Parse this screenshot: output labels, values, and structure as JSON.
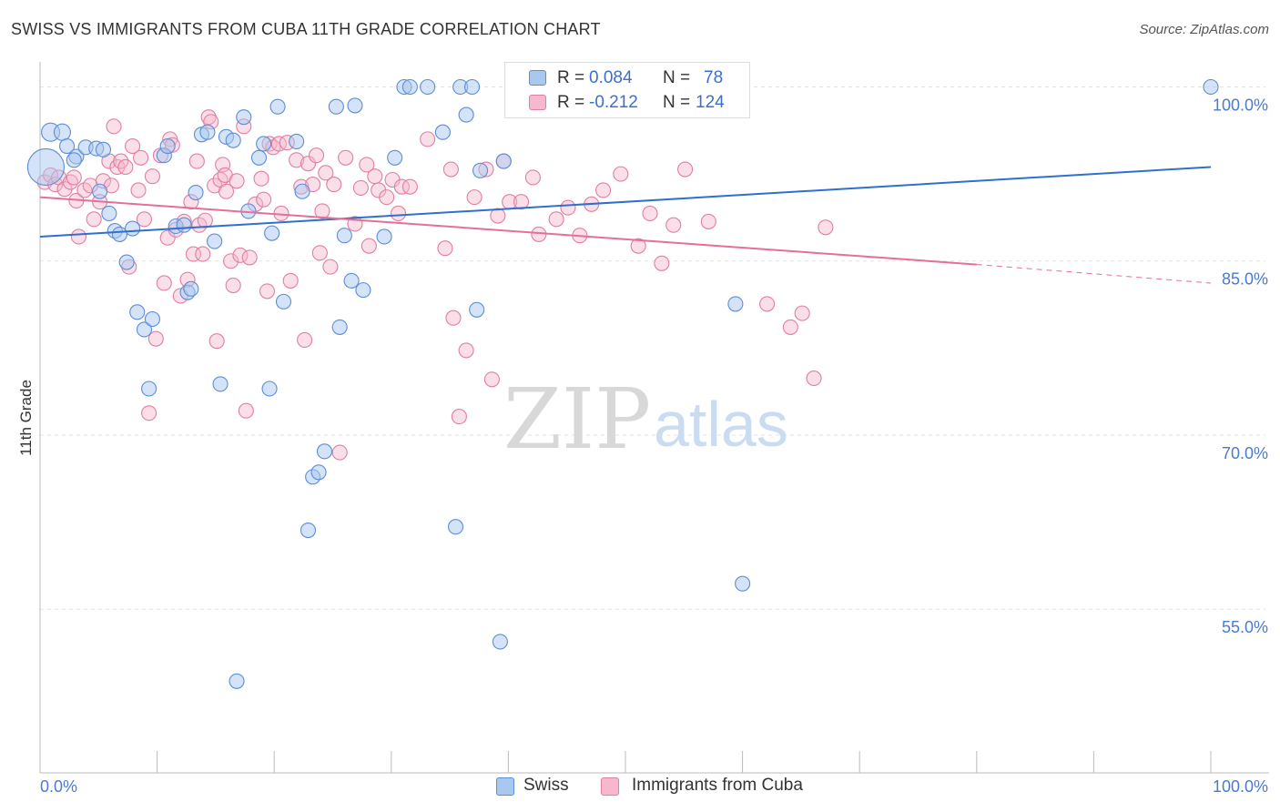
{
  "title": "SWISS VS IMMIGRANTS FROM CUBA 11TH GRADE CORRELATION CHART",
  "source": "Source: ZipAtlas.com",
  "watermark": "ZIPatlas",
  "colors": {
    "swiss_fill": "#a9c8f0",
    "swiss_stroke": "#5b8dd9",
    "swiss_line": "#2f6fcf",
    "cuba_fill": "#f7b8cc",
    "cuba_stroke": "#e07fa0",
    "cuba_line": "#e46f98",
    "axis_text": "#4a7bd1",
    "grid": "#e3e3e3"
  },
  "legend": {
    "rows": [
      {
        "r_label": "R =",
        "r_value": "0.084",
        "n_label": "N =",
        "n_value": "78"
      },
      {
        "r_label": "R =",
        "r_value": "-0.212",
        "n_label": "N =",
        "n_value": "124"
      }
    ]
  },
  "bottom_legend": [
    {
      "label": "Swiss"
    },
    {
      "label": "Immigrants from Cuba"
    }
  ],
  "chart_data": {
    "type": "scatter",
    "title": "SWISS VS IMMIGRANTS FROM CUBA 11TH GRADE CORRELATION CHART",
    "xlabel": "",
    "ylabel": "11th Grade",
    "x_tick_labels": [
      "0.0%",
      "100.0%"
    ],
    "y_tick_labels": [
      "100.0%",
      "85.0%",
      "70.0%",
      "55.0%"
    ],
    "y_ticks": [
      100,
      85,
      70,
      55
    ],
    "xlim": [
      0,
      100
    ],
    "ylim": [
      40.9,
      102.0
    ],
    "grid": true,
    "legend_position": "top-center",
    "series": [
      {
        "name": "Swiss",
        "r": 0.084,
        "n": 78,
        "trend": {
          "x": [
            0,
            100
          ],
          "y": [
            87.1,
            93.1
          ]
        },
        "points": [
          [
            0.5,
            93.1,
            20
          ],
          [
            0.9,
            96.1,
            10
          ],
          [
            1.9,
            96.1,
            9
          ],
          [
            2.3,
            94.9,
            8
          ],
          [
            3.1,
            94.0,
            8
          ],
          [
            3.9,
            94.8,
            8
          ],
          [
            4.8,
            94.7,
            8
          ],
          [
            5.4,
            94.6,
            8
          ],
          [
            2.9,
            93.7,
            8
          ],
          [
            5.1,
            91.0,
            8
          ],
          [
            5.9,
            89.1,
            8
          ],
          [
            6.4,
            87.6,
            8
          ],
          [
            6.8,
            87.3,
            8
          ],
          [
            7.9,
            87.8,
            8
          ],
          [
            7.4,
            84.9,
            8
          ],
          [
            8.3,
            80.6,
            8
          ],
          [
            8.9,
            79.1,
            8
          ],
          [
            9.6,
            80.0,
            8
          ],
          [
            9.3,
            74.0,
            8
          ],
          [
            10.6,
            94.1,
            8
          ],
          [
            10.9,
            94.9,
            8
          ],
          [
            11.6,
            88.0,
            8
          ],
          [
            12.3,
            88.1,
            8
          ],
          [
            12.6,
            82.3,
            8
          ],
          [
            12.9,
            82.6,
            8
          ],
          [
            13.3,
            90.9,
            8
          ],
          [
            13.8,
            95.9,
            8
          ],
          [
            14.3,
            96.1,
            8
          ],
          [
            14.9,
            86.7,
            8
          ],
          [
            15.4,
            74.4,
            8
          ],
          [
            15.9,
            95.7,
            8
          ],
          [
            16.5,
            95.4,
            8
          ],
          [
            16.8,
            48.8,
            8
          ],
          [
            17.4,
            97.4,
            8
          ],
          [
            17.8,
            89.3,
            8
          ],
          [
            18.7,
            93.9,
            8
          ],
          [
            19.1,
            95.1,
            8
          ],
          [
            19.6,
            74.0,
            8
          ],
          [
            19.8,
            87.4,
            8
          ],
          [
            20.3,
            98.3,
            8
          ],
          [
            20.8,
            81.5,
            8
          ],
          [
            21.9,
            95.3,
            8
          ],
          [
            22.4,
            91.0,
            8
          ],
          [
            22.9,
            61.8,
            8
          ],
          [
            23.3,
            66.4,
            8
          ],
          [
            23.8,
            66.8,
            8
          ],
          [
            24.3,
            68.6,
            8
          ],
          [
            25.3,
            98.3,
            8
          ],
          [
            25.6,
            79.3,
            8
          ],
          [
            26.0,
            87.2,
            8
          ],
          [
            26.6,
            83.3,
            8
          ],
          [
            26.9,
            98.4,
            8
          ],
          [
            27.6,
            82.5,
            8
          ],
          [
            29.4,
            87.1,
            8
          ],
          [
            30.3,
            93.9,
            8
          ],
          [
            31.1,
            100.0,
            8
          ],
          [
            31.6,
            100.0,
            8
          ],
          [
            33.1,
            100.0,
            8
          ],
          [
            34.4,
            96.1,
            8
          ],
          [
            35.5,
            62.1,
            8
          ],
          [
            35.9,
            100.0,
            8
          ],
          [
            36.4,
            97.6,
            8
          ],
          [
            36.9,
            100.0,
            8
          ],
          [
            37.3,
            80.8,
            8
          ],
          [
            37.6,
            92.8,
            8
          ],
          [
            39.3,
            52.2,
            8
          ],
          [
            39.6,
            93.6,
            8
          ],
          [
            45.2,
            100.0,
            8
          ],
          [
            46.5,
            100.0,
            8
          ],
          [
            47.6,
            100.0,
            8
          ],
          [
            51.9,
            100.0,
            8
          ],
          [
            53.1,
            100.0,
            8
          ],
          [
            55.3,
            100.0,
            8
          ],
          [
            57.7,
            100.0,
            8
          ],
          [
            59.0,
            100.0,
            8
          ],
          [
            60.0,
            57.2,
            8
          ],
          [
            59.4,
            81.3,
            8
          ],
          [
            100.0,
            100.0,
            8
          ]
        ]
      },
      {
        "name": "Immigrants from Cuba",
        "r": -0.212,
        "n": 124,
        "trend": {
          "x": [
            0,
            80
          ],
          "y": [
            90.5,
            84.7
          ]
        },
        "trend_dashed": {
          "x": [
            80,
            100
          ],
          "y": [
            84.7,
            83.1
          ]
        },
        "points": [
          [
            0.4,
            91.8,
            8
          ],
          [
            0.9,
            92.4,
            8
          ],
          [
            1.3,
            91.6,
            8
          ],
          [
            1.6,
            92.2,
            8
          ],
          [
            2.1,
            91.2,
            8
          ],
          [
            2.6,
            91.8,
            8
          ],
          [
            2.9,
            92.2,
            8
          ],
          [
            3.3,
            87.1,
            8
          ],
          [
            3.1,
            90.2,
            8
          ],
          [
            3.8,
            91.1,
            8
          ],
          [
            4.3,
            91.5,
            8
          ],
          [
            4.6,
            88.6,
            8
          ],
          [
            5.1,
            90.1,
            8
          ],
          [
            5.4,
            91.9,
            8
          ],
          [
            5.9,
            93.6,
            8
          ],
          [
            6.1,
            91.5,
            8
          ],
          [
            6.3,
            96.6,
            8
          ],
          [
            6.6,
            93.1,
            8
          ],
          [
            6.9,
            93.6,
            8
          ],
          [
            7.3,
            93.1,
            8
          ],
          [
            7.6,
            84.5,
            8
          ],
          [
            7.9,
            94.9,
            8
          ],
          [
            8.4,
            91.1,
            8
          ],
          [
            8.6,
            93.9,
            8
          ],
          [
            8.9,
            88.6,
            8
          ],
          [
            9.3,
            71.9,
            8
          ],
          [
            9.6,
            92.3,
            8
          ],
          [
            9.9,
            78.3,
            8
          ],
          [
            10.3,
            94.1,
            8
          ],
          [
            10.6,
            83.1,
            8
          ],
          [
            10.9,
            87.0,
            8
          ],
          [
            11.1,
            95.5,
            8
          ],
          [
            11.3,
            95.0,
            8
          ],
          [
            11.6,
            87.7,
            8
          ],
          [
            12.0,
            82.0,
            8
          ],
          [
            12.3,
            88.4,
            8
          ],
          [
            12.6,
            83.4,
            8
          ],
          [
            12.9,
            90.1,
            8
          ],
          [
            13.1,
            85.6,
            8
          ],
          [
            13.4,
            93.6,
            8
          ],
          [
            13.6,
            88.1,
            8
          ],
          [
            13.9,
            85.6,
            8
          ],
          [
            14.1,
            88.5,
            8
          ],
          [
            14.4,
            97.4,
            8
          ],
          [
            14.6,
            97.0,
            8
          ],
          [
            14.9,
            91.5,
            8
          ],
          [
            15.1,
            78.1,
            8
          ],
          [
            15.4,
            92.0,
            8
          ],
          [
            15.6,
            93.3,
            8
          ],
          [
            15.8,
            92.4,
            8
          ],
          [
            15.9,
            91.0,
            8
          ],
          [
            16.3,
            85.0,
            8
          ],
          [
            16.5,
            82.9,
            8
          ],
          [
            16.8,
            91.9,
            8
          ],
          [
            17.1,
            85.5,
            8
          ],
          [
            17.4,
            96.6,
            8
          ],
          [
            17.6,
            72.1,
            8
          ],
          [
            17.9,
            85.3,
            8
          ],
          [
            18.4,
            89.9,
            8
          ],
          [
            18.9,
            92.1,
            8
          ],
          [
            19.1,
            90.3,
            8
          ],
          [
            19.4,
            82.4,
            8
          ],
          [
            19.6,
            95.1,
            8
          ],
          [
            19.9,
            94.8,
            8
          ],
          [
            20.4,
            95.1,
            8
          ],
          [
            20.6,
            89.1,
            8
          ],
          [
            21.1,
            95.2,
            8
          ],
          [
            21.4,
            83.3,
            8
          ],
          [
            21.9,
            93.7,
            8
          ],
          [
            22.3,
            91.4,
            8
          ],
          [
            22.6,
            78.2,
            8
          ],
          [
            22.9,
            93.4,
            8
          ],
          [
            23.3,
            91.6,
            8
          ],
          [
            23.6,
            94.1,
            8
          ],
          [
            23.9,
            85.7,
            8
          ],
          [
            24.1,
            89.3,
            8
          ],
          [
            24.4,
            92.6,
            8
          ],
          [
            24.8,
            84.5,
            8
          ],
          [
            25.1,
            91.6,
            8
          ],
          [
            25.6,
            68.5,
            8
          ],
          [
            26.1,
            93.9,
            8
          ],
          [
            26.9,
            88.2,
            8
          ],
          [
            27.4,
            91.3,
            8
          ],
          [
            27.9,
            93.3,
            8
          ],
          [
            28.1,
            86.3,
            8
          ],
          [
            28.6,
            92.3,
            8
          ],
          [
            28.9,
            91.1,
            8
          ],
          [
            29.6,
            90.5,
            8
          ],
          [
            30.1,
            92.0,
            8
          ],
          [
            30.6,
            89.1,
            8
          ],
          [
            30.9,
            91.4,
            8
          ],
          [
            31.6,
            91.4,
            8
          ],
          [
            33.1,
            95.5,
            8
          ],
          [
            34.6,
            86.1,
            8
          ],
          [
            35.1,
            92.9,
            8
          ],
          [
            35.3,
            80.1,
            8
          ],
          [
            35.8,
            71.6,
            8
          ],
          [
            36.4,
            77.3,
            8
          ],
          [
            37.1,
            90.5,
            8
          ],
          [
            38.1,
            92.9,
            8
          ],
          [
            38.6,
            74.8,
            8
          ],
          [
            39.1,
            88.9,
            8
          ],
          [
            39.6,
            93.6,
            8
          ],
          [
            40.1,
            90.1,
            8
          ],
          [
            41.1,
            90.1,
            8
          ],
          [
            42.1,
            92.2,
            8
          ],
          [
            42.6,
            87.3,
            8
          ],
          [
            44.1,
            88.6,
            8
          ],
          [
            45.1,
            89.6,
            8
          ],
          [
            46.1,
            87.2,
            8
          ],
          [
            47.1,
            89.9,
            8
          ],
          [
            49.6,
            92.5,
            8
          ],
          [
            51.1,
            86.3,
            8
          ],
          [
            52.1,
            89.1,
            8
          ],
          [
            53.1,
            84.8,
            8
          ],
          [
            54.1,
            88.1,
            8
          ],
          [
            55.1,
            92.9,
            8
          ],
          [
            57.1,
            88.4,
            8
          ],
          [
            62.1,
            81.3,
            8
          ],
          [
            64.1,
            79.3,
            8
          ],
          [
            65.1,
            80.5,
            8
          ],
          [
            66.1,
            74.9,
            8
          ],
          [
            67.1,
            87.9,
            8
          ],
          [
            48.1,
            91.1,
            8
          ]
        ]
      }
    ]
  }
}
